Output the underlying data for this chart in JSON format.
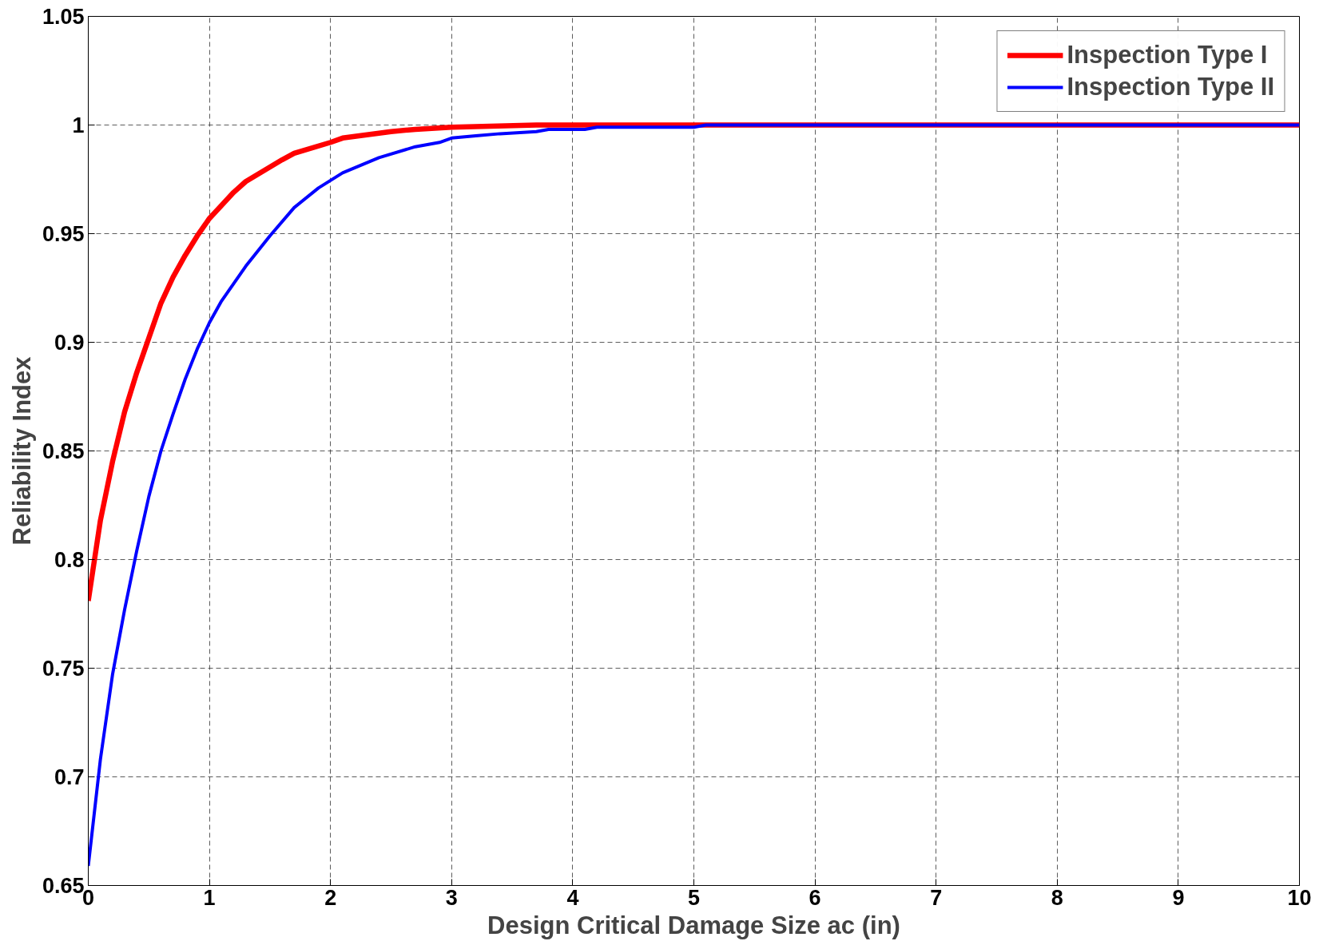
{
  "chart_data": {
    "type": "line",
    "xlabel": "Design Critical Damage Size ac (in)",
    "ylabel": "Reliability Index",
    "xlim": [
      0,
      10
    ],
    "ylim": [
      0.65,
      1.05
    ],
    "xticks": [
      0,
      1,
      2,
      3,
      4,
      5,
      6,
      7,
      8,
      9,
      10
    ],
    "yticks": [
      0.65,
      0.7,
      0.75,
      0.8,
      0.85,
      0.9,
      0.95,
      1,
      1.05
    ],
    "grid": true,
    "legend": "top right",
    "marker": "none",
    "line_style": "solid",
    "series": [
      {
        "name": "Inspection Type I",
        "color": "#ff0000",
        "x": [
          0,
          0.1,
          0.2,
          0.3,
          0.4,
          0.5,
          0.6,
          0.7,
          0.8,
          0.9,
          1.0,
          1.2,
          1.3,
          1.6,
          1.7,
          2.0,
          2.1,
          2.5,
          2.7,
          3.0,
          3.7,
          10
        ],
        "values": [
          0.781,
          0.818,
          0.845,
          0.868,
          0.886,
          0.902,
          0.918,
          0.93,
          0.94,
          0.949,
          0.957,
          0.969,
          0.974,
          0.984,
          0.987,
          0.992,
          0.994,
          0.997,
          0.998,
          0.999,
          1.0,
          1.0
        ]
      },
      {
        "name": "Inspection Type II",
        "color": "#0000ff",
        "x": [
          0,
          0.1,
          0.2,
          0.3,
          0.4,
          0.5,
          0.6,
          0.7,
          0.8,
          0.9,
          1.0,
          1.1,
          1.3,
          1.5,
          1.7,
          1.9,
          2.1,
          2.4,
          2.7,
          2.9,
          3.0,
          3.2,
          3.4,
          3.7,
          3.8,
          4.1,
          4.2,
          5.0,
          5.1,
          10
        ],
        "values": [
          0.659,
          0.708,
          0.747,
          0.777,
          0.804,
          0.829,
          0.85,
          0.867,
          0.883,
          0.897,
          0.909,
          0.919,
          0.935,
          0.949,
          0.962,
          0.971,
          0.978,
          0.985,
          0.99,
          0.992,
          0.994,
          0.995,
          0.996,
          0.997,
          0.998,
          0.998,
          0.999,
          0.999,
          1.0,
          1.0
        ]
      }
    ]
  }
}
